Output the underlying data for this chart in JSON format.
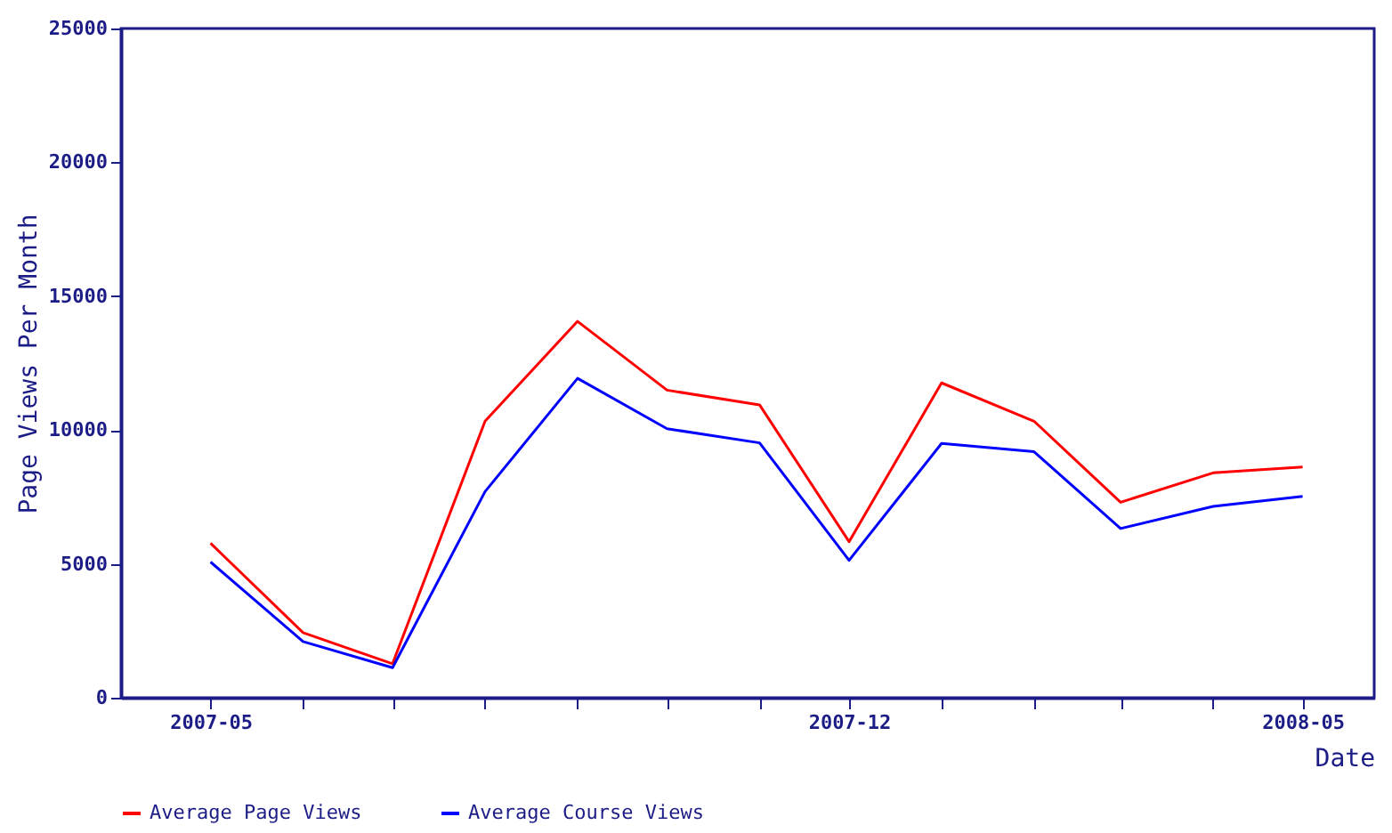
{
  "chart_data": {
    "type": "line",
    "x": [
      "2007-05",
      "2007-06",
      "2007-07",
      "2007-08",
      "2007-09",
      "2007-10",
      "2007-11",
      "2007-12",
      "2008-01",
      "2008-02",
      "2008-03",
      "2008-04",
      "2008-05"
    ],
    "series": [
      {
        "name": "Average Page Views",
        "color": "#ff0000",
        "values": [
          5770,
          2430,
          1270,
          10330,
          14060,
          11490,
          10940,
          5830,
          11760,
          10330,
          7300,
          8400,
          8620
        ]
      },
      {
        "name": "Average Course Views",
        "color": "#0000ff",
        "values": [
          5070,
          2100,
          1120,
          7700,
          11930,
          10050,
          9520,
          5130,
          9500,
          9190,
          6320,
          7150,
          7520
        ]
      }
    ],
    "xlabel": "Date",
    "ylabel": "Page Views Per Month",
    "xlim": [
      "2007-04",
      "2008-05-25"
    ],
    "xticks": [
      {
        "value": "2007-05",
        "label": "2007-05"
      },
      {
        "value": "2007-06",
        "label": null
      },
      {
        "value": "2007-07",
        "label": null
      },
      {
        "value": "2007-08",
        "label": null
      },
      {
        "value": "2007-09",
        "label": null
      },
      {
        "value": "2007-10",
        "label": null
      },
      {
        "value": "2007-11",
        "label": null
      },
      {
        "value": "2007-12",
        "label": "2007-12"
      },
      {
        "value": "2008-01",
        "label": null
      },
      {
        "value": "2008-02",
        "label": null
      },
      {
        "value": "2008-03",
        "label": null
      },
      {
        "value": "2008-04",
        "label": null
      },
      {
        "value": "2008-05",
        "label": "2008-05"
      }
    ],
    "ylim": [
      0,
      25000
    ],
    "yticks": [
      0,
      5000,
      10000,
      15000,
      20000,
      25000
    ],
    "grid": false,
    "legend": "bottom",
    "line_style": "solid"
  }
}
